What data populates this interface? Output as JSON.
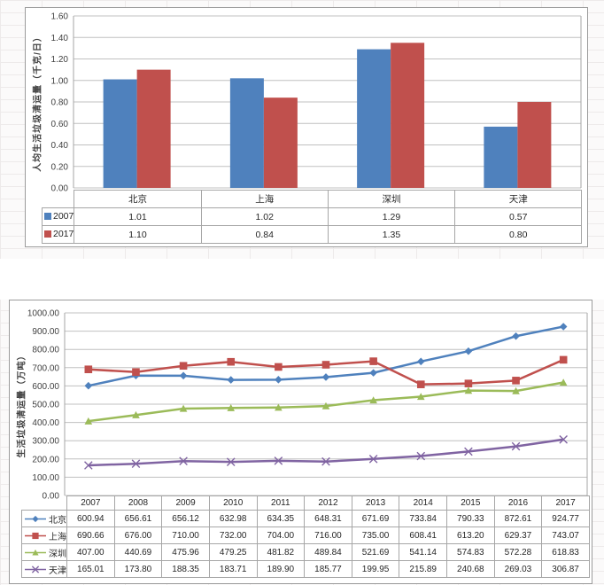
{
  "style": {
    "grid_line_color": "#c0c0c0",
    "axis_line_color": "#a6a6a6",
    "table_border_color": "#a6a6a6",
    "tick_text_color": "#404040",
    "chart_border_color": "#9b9b9b",
    "spreadsheet_bg": "#fbfafa",
    "spreadsheet_line_color": "#edeaea",
    "series_colors": {
      "blue": "#4F81BD",
      "red": "#C0504D",
      "green": "#9BBB59",
      "purple": "#8064A2"
    }
  },
  "chart_data": [
    {
      "type": "bar",
      "title": "",
      "xlabel": "",
      "ylabel": "人均生活垃圾清运量（千克/日）",
      "categories": [
        "北京",
        "上海",
        "深圳",
        "天津"
      ],
      "series": [
        {
          "name": "2007",
          "color": "#4F81BD",
          "values": [
            1.01,
            1.02,
            1.29,
            0.57
          ]
        },
        {
          "name": "2017",
          "color": "#C0504D",
          "values": [
            1.1,
            0.84,
            1.35,
            0.8
          ]
        }
      ],
      "ylim": [
        0,
        1.6
      ],
      "ytick_step": 0.2,
      "tick_decimals": 2,
      "grid": "horizontal",
      "legend_position": "data-table-left",
      "data_table": true
    },
    {
      "type": "line",
      "title": "",
      "xlabel": "",
      "ylabel": "生活垃圾清运量（万吨）",
      "categories": [
        "2007",
        "2008",
        "2009",
        "2010",
        "2011",
        "2012",
        "2013",
        "2014",
        "2015",
        "2016",
        "2017"
      ],
      "series": [
        {
          "name": "北京",
          "color": "#4F81BD",
          "marker": "diamond",
          "values": [
            600.94,
            656.61,
            656.12,
            632.98,
            634.35,
            648.31,
            671.69,
            733.84,
            790.33,
            872.61,
            924.77
          ]
        },
        {
          "name": "上海",
          "color": "#C0504D",
          "marker": "square",
          "values": [
            690.66,
            676.0,
            710.0,
            732.0,
            704.0,
            716.0,
            735.0,
            608.41,
            613.2,
            629.37,
            743.07
          ]
        },
        {
          "name": "深圳",
          "color": "#9BBB59",
          "marker": "triangle",
          "values": [
            407.0,
            440.69,
            475.96,
            479.25,
            481.82,
            489.84,
            521.69,
            541.14,
            574.83,
            572.28,
            618.83
          ]
        },
        {
          "name": "天津",
          "color": "#8064A2",
          "marker": "x",
          "values": [
            165.01,
            173.8,
            188.35,
            183.71,
            189.9,
            185.77,
            199.95,
            215.89,
            240.68,
            269.03,
            306.87
          ]
        }
      ],
      "ylim": [
        0,
        1000
      ],
      "ytick_step": 100,
      "tick_decimals": 2,
      "grid": "horizontal",
      "legend_position": "data-table-left",
      "data_table": true
    }
  ]
}
